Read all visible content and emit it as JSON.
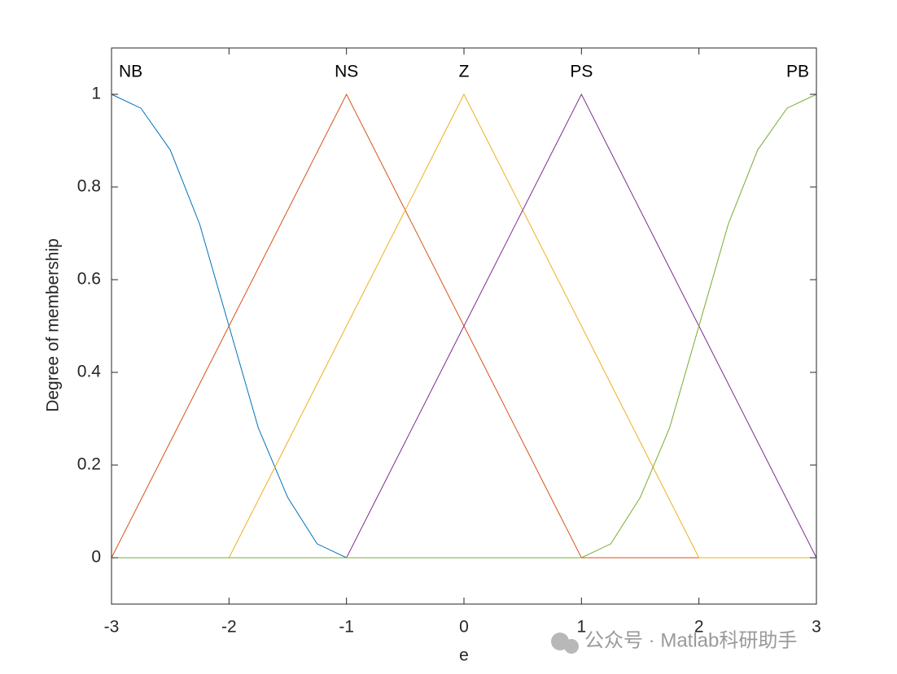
{
  "chart_data": {
    "type": "line",
    "xlabel": "e",
    "ylabel": "Degree of membership",
    "annotation": "公众号 · Matlab科研助手",
    "x": [
      -3,
      -2.75,
      -2.5,
      -2.25,
      -2,
      -1.75,
      -1.5,
      -1.25,
      -1,
      -0.75,
      -0.5,
      -0.25,
      0,
      0.25,
      0.5,
      0.75,
      1,
      1.25,
      1.5,
      1.75,
      2,
      2.25,
      2.5,
      2.75,
      3
    ],
    "series": [
      {
        "name": "NB",
        "color": "#0072BD",
        "values": [
          1,
          0.97,
          0.88,
          0.72,
          0.5,
          0.28,
          0.13,
          0.03,
          0,
          0,
          0,
          0,
          0,
          0,
          0,
          0,
          0,
          0,
          0,
          0,
          0,
          0,
          0,
          0,
          0
        ]
      },
      {
        "name": "NS",
        "color": "#D95319",
        "values": [
          0,
          0.125,
          0.25,
          0.375,
          0.5,
          0.625,
          0.75,
          0.875,
          1,
          0.875,
          0.75,
          0.625,
          0.5,
          0.375,
          0.25,
          0.125,
          0,
          0,
          0,
          0,
          0,
          0,
          0,
          0,
          0
        ]
      },
      {
        "name": "Z",
        "color": "#EDB120",
        "values": [
          0,
          0,
          0,
          0,
          0,
          0.125,
          0.25,
          0.375,
          0.5,
          0.625,
          0.75,
          0.875,
          1,
          0.875,
          0.75,
          0.625,
          0.5,
          0.375,
          0.25,
          0.125,
          0,
          0,
          0,
          0,
          0
        ]
      },
      {
        "name": "PS",
        "color": "#7E2F8E",
        "values": [
          0,
          0,
          0,
          0,
          0,
          0,
          0,
          0,
          0,
          0.125,
          0.25,
          0.375,
          0.5,
          0.625,
          0.75,
          0.875,
          1,
          0.875,
          0.75,
          0.625,
          0.5,
          0.375,
          0.25,
          0.125,
          0
        ]
      },
      {
        "name": "PB",
        "color": "#77AC30",
        "values": [
          0,
          0,
          0,
          0,
          0,
          0,
          0,
          0,
          0,
          0,
          0,
          0,
          0,
          0,
          0,
          0,
          0,
          0.03,
          0.13,
          0.28,
          0.5,
          0.72,
          0.88,
          0.97,
          1
        ]
      }
    ],
    "xlim": [
      -3,
      3
    ],
    "ylim": [
      -0.1,
      1.1
    ],
    "xticks": [
      -3,
      -2,
      -1,
      0,
      1,
      2,
      3
    ],
    "yticks": [
      0,
      0.2,
      0.4,
      0.6,
      0.8,
      1
    ],
    "grid": false
  }
}
